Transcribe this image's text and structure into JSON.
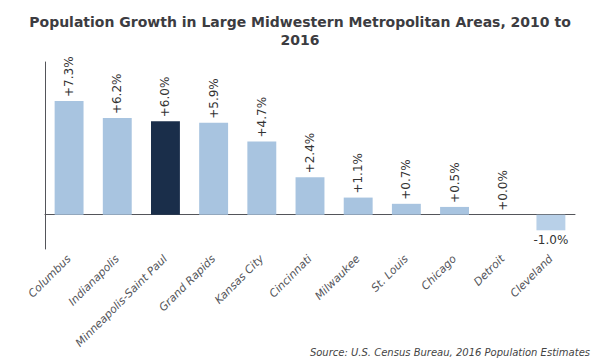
{
  "chart_data": {
    "type": "bar",
    "title": "Population Growth in Large Midwestern Metropolitan Areas, 2010 to\n2016",
    "categories": [
      "Columbus",
      "Indianapolis",
      "Minneapolis-Saint Paul",
      "Grand Rapids",
      "Kansas City",
      "Cincinnati",
      "Milwaukee",
      "St. Louis",
      "Chicago",
      "Detroit",
      "Cleveland"
    ],
    "values": [
      7.3,
      6.2,
      6.0,
      5.9,
      4.7,
      2.4,
      1.1,
      0.7,
      0.5,
      0.0,
      -1.0
    ],
    "value_labels": [
      "+7.3%",
      "+6.2%",
      "+6.0%",
      "+5.9%",
      "+4.7%",
      "+2.4%",
      "+1.1%",
      "+0.7%",
      "+0.5%",
      "+0.0%",
      "-1.0%"
    ],
    "colors": [
      "#a8c4e0",
      "#a8c4e0",
      "#1a2e4a",
      "#a8c4e0",
      "#a8c4e0",
      "#a8c4e0",
      "#a8c4e0",
      "#a8c4e0",
      "#a8c4e0",
      "#a8c4e0",
      "#b8d0e8"
    ],
    "ylim": [
      -2.2,
      9.8
    ],
    "tick_labels": "x",
    "data_labels": true,
    "grid": false,
    "annotations": [
      "Source: U.S. Census Bureau, 2016 Population Estimates"
    ]
  }
}
